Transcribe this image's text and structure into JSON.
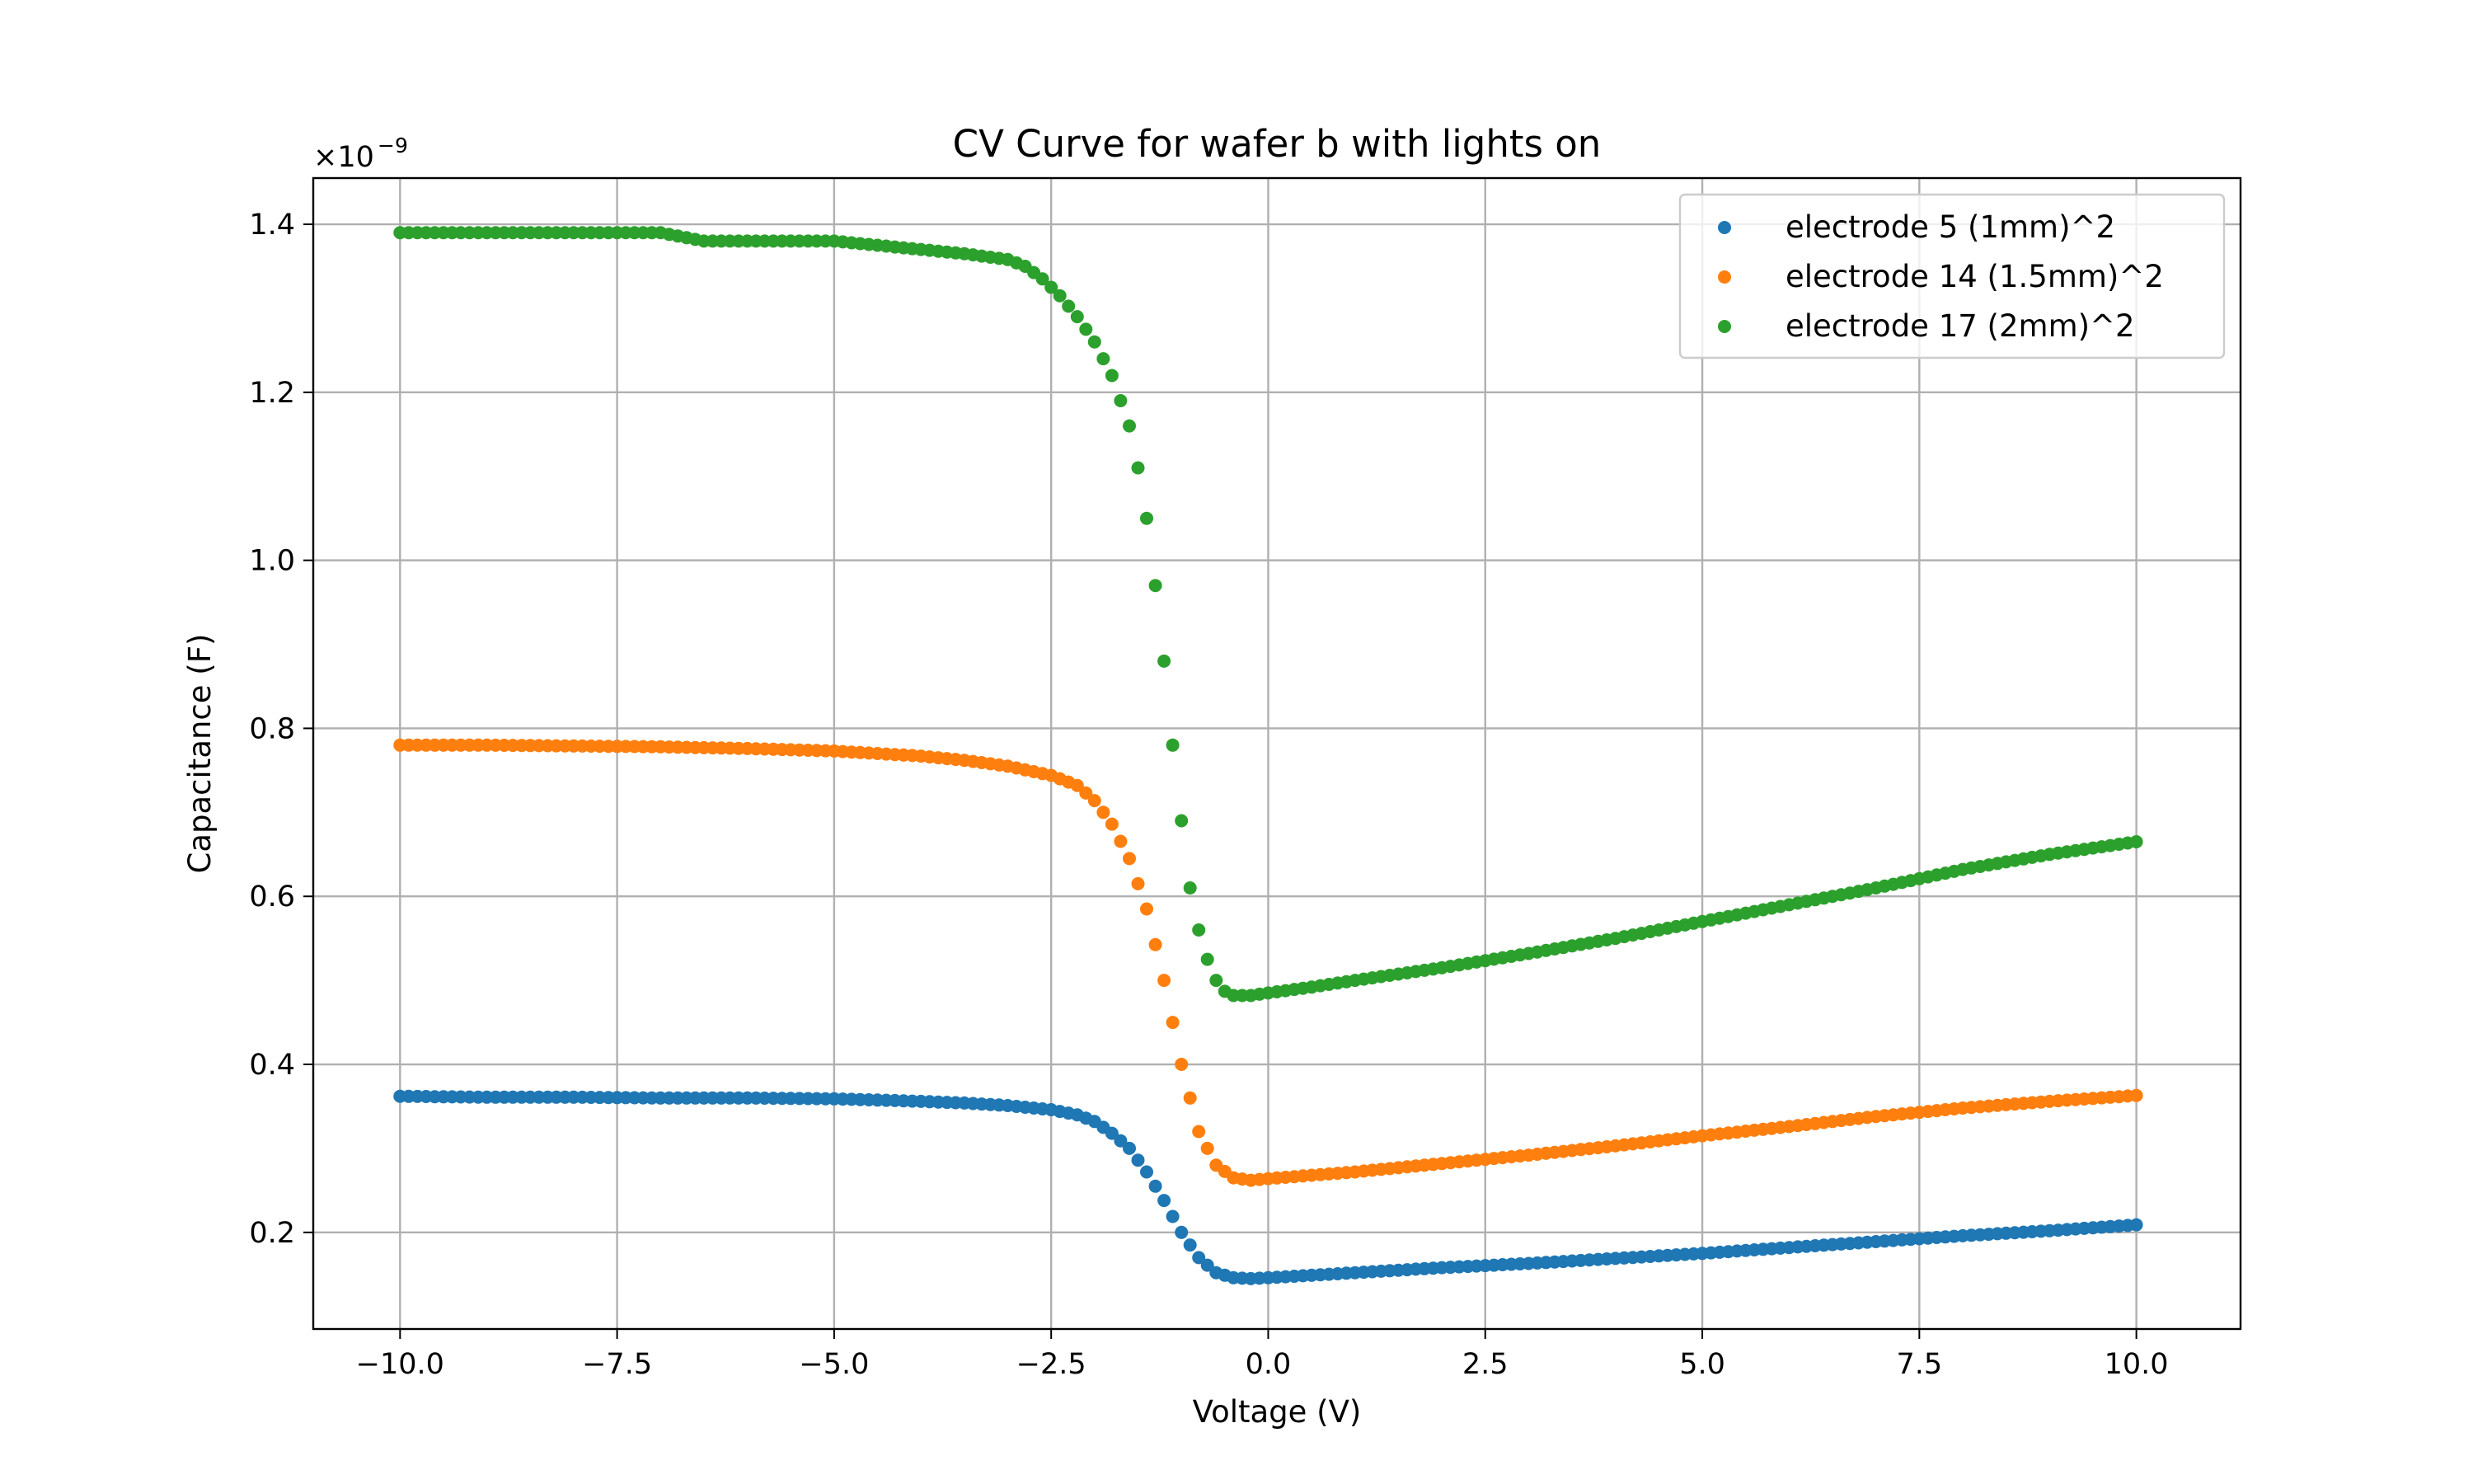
{
  "chart_data": {
    "type": "scatter",
    "title": "CV Curve for wafer b with lights on",
    "xlabel": "Voltage (V)",
    "ylabel": "Capacitance (F)",
    "y_offset_label": "×10",
    "y_offset_exponent": "−9",
    "xlim": [
      -11.0,
      11.2
    ],
    "ylim": [
      0.085,
      1.455
    ],
    "xticks": [
      -10.0,
      -7.5,
      -5.0,
      -2.5,
      0.0,
      2.5,
      5.0,
      7.5,
      10.0
    ],
    "xtick_labels": [
      "−10.0",
      "−7.5",
      "−5.0",
      "−2.5",
      "0.0",
      "2.5",
      "5.0",
      "7.5",
      "10.0"
    ],
    "yticks": [
      0.2,
      0.4,
      0.6,
      0.8,
      1.0,
      1.2,
      1.4
    ],
    "ytick_labels": [
      "0.2",
      "0.4",
      "0.6",
      "0.8",
      "1.0",
      "1.2",
      "1.4"
    ],
    "grid": true,
    "legend_position": "top-right",
    "series": [
      {
        "name": "electrode 5 (1mm)^2",
        "color": "#1f77b4",
        "x": [
          -10.0,
          -9.0,
          -8.0,
          -7.0,
          -6.0,
          -5.0,
          -4.0,
          -3.5,
          -3.0,
          -2.5,
          -2.2,
          -2.0,
          -1.8,
          -1.6,
          -1.4,
          -1.2,
          -1.0,
          -0.8,
          -0.6,
          -0.4,
          -0.2,
          0.0,
          0.5,
          1.0,
          2.0,
          3.0,
          4.0,
          5.0,
          6.0,
          7.0,
          8.0,
          9.0,
          10.0
        ],
        "y": [
          0.362,
          0.361,
          0.361,
          0.36,
          0.36,
          0.359,
          0.356,
          0.354,
          0.351,
          0.346,
          0.34,
          0.332,
          0.318,
          0.3,
          0.272,
          0.238,
          0.2,
          0.17,
          0.152,
          0.146,
          0.145,
          0.146,
          0.149,
          0.152,
          0.158,
          0.163,
          0.169,
          0.175,
          0.182,
          0.189,
          0.196,
          0.202,
          0.209
        ]
      },
      {
        "name": "electrode 14 (1.5mm)^2",
        "color": "#ff7f0e",
        "x": [
          -10.0,
          -9.0,
          -8.0,
          -7.0,
          -6.0,
          -5.0,
          -4.0,
          -3.5,
          -3.0,
          -2.5,
          -2.2,
          -2.0,
          -1.8,
          -1.6,
          -1.4,
          -1.2,
          -1.0,
          -0.8,
          -0.6,
          -0.4,
          -0.2,
          0.0,
          0.5,
          1.0,
          2.0,
          3.0,
          4.0,
          5.0,
          6.0,
          7.0,
          8.0,
          9.0,
          10.0
        ],
        "y": [
          0.78,
          0.78,
          0.779,
          0.778,
          0.776,
          0.773,
          0.767,
          0.762,
          0.755,
          0.744,
          0.732,
          0.714,
          0.686,
          0.645,
          0.585,
          0.5,
          0.4,
          0.32,
          0.28,
          0.265,
          0.262,
          0.264,
          0.268,
          0.272,
          0.282,
          0.292,
          0.303,
          0.315,
          0.326,
          0.338,
          0.348,
          0.356,
          0.363
        ]
      },
      {
        "name": "electrode 17 (2mm)^2",
        "color": "#2ca02c",
        "x": [
          -10.0,
          -9.0,
          -8.0,
          -7.0,
          -6.5,
          -6.0,
          -5.0,
          -4.5,
          -4.0,
          -3.5,
          -3.0,
          -2.8,
          -2.6,
          -2.4,
          -2.2,
          -2.0,
          -1.8,
          -1.6,
          -1.5,
          -1.4,
          -1.3,
          -1.2,
          -1.1,
          -1.0,
          -0.9,
          -0.8,
          -0.7,
          -0.6,
          -0.5,
          -0.4,
          -0.2,
          0.0,
          0.5,
          1.0,
          2.0,
          3.0,
          4.0,
          5.0,
          6.0,
          7.0,
          8.0,
          9.0,
          10.0
        ],
        "y": [
          1.39,
          1.39,
          1.39,
          1.39,
          1.38,
          1.38,
          1.38,
          1.375,
          1.37,
          1.365,
          1.358,
          1.35,
          1.335,
          1.315,
          1.29,
          1.26,
          1.22,
          1.16,
          1.11,
          1.05,
          0.97,
          0.88,
          0.78,
          0.69,
          0.61,
          0.56,
          0.525,
          0.5,
          0.487,
          0.482,
          0.482,
          0.485,
          0.492,
          0.5,
          0.515,
          0.532,
          0.55,
          0.57,
          0.59,
          0.61,
          0.632,
          0.65,
          0.665
        ]
      }
    ]
  }
}
